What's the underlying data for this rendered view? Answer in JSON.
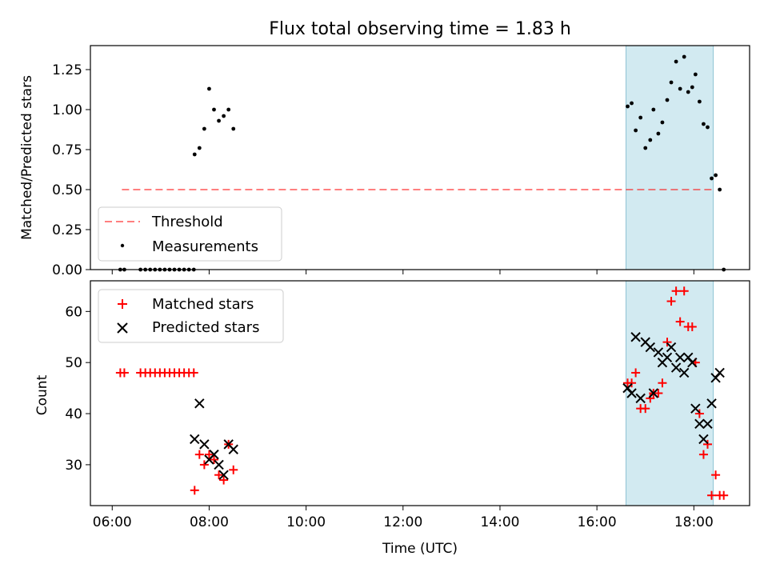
{
  "chart_data": [
    {
      "type": "scatter",
      "title": "Flux total observing time = 1.83 h",
      "xlabel": "",
      "ylabel": "Matched/Predicted stars",
      "xlim_hours": [
        5.55,
        19.15
      ],
      "ylim": [
        0,
        1.4
      ],
      "yticks": [
        "0.00",
        "0.25",
        "0.50",
        "0.75",
        "1.00",
        "1.25"
      ],
      "shaded_interval_utc": [
        "16:36",
        "18:24"
      ],
      "shade_color": "#add8e6",
      "legend_position": "lower-left",
      "threshold": {
        "name": "Threshold",
        "value": 0.5,
        "x_range_utc": [
          "06:12",
          "18:24"
        ],
        "color": "#ff0000"
      },
      "series": [
        {
          "name": "Measurements",
          "marker": "dot",
          "color": "#000000",
          "points": [
            [
              "06:10",
              0.0
            ],
            [
              "06:15",
              0.0
            ],
            [
              "06:35",
              0.0
            ],
            [
              "06:41",
              0.0
            ],
            [
              "06:47",
              0.0
            ],
            [
              "06:53",
              0.0
            ],
            [
              "06:59",
              0.0
            ],
            [
              "07:05",
              0.0
            ],
            [
              "07:11",
              0.0
            ],
            [
              "07:17",
              0.0
            ],
            [
              "07:23",
              0.0
            ],
            [
              "07:29",
              0.0
            ],
            [
              "07:35",
              0.0
            ],
            [
              "07:41",
              0.0
            ],
            [
              "07:42",
              0.72
            ],
            [
              "07:48",
              0.76
            ],
            [
              "07:54",
              0.88
            ],
            [
              "08:00",
              1.13
            ],
            [
              "08:06",
              1.0
            ],
            [
              "08:12",
              0.93
            ],
            [
              "08:18",
              0.96
            ],
            [
              "08:24",
              1.0
            ],
            [
              "08:30",
              0.88
            ],
            [
              "16:38",
              1.02
            ],
            [
              "16:43",
              1.04
            ],
            [
              "16:48",
              0.87
            ],
            [
              "16:54",
              0.95
            ],
            [
              "17:00",
              0.76
            ],
            [
              "17:06",
              0.81
            ],
            [
              "17:10",
              1.0
            ],
            [
              "17:16",
              0.85
            ],
            [
              "17:21",
              0.92
            ],
            [
              "17:27",
              1.06
            ],
            [
              "17:32",
              1.17
            ],
            [
              "17:38",
              1.3
            ],
            [
              "17:43",
              1.13
            ],
            [
              "17:48",
              1.33
            ],
            [
              "17:53",
              1.11
            ],
            [
              "17:58",
              1.14
            ],
            [
              "18:02",
              1.22
            ],
            [
              "18:07",
              1.05
            ],
            [
              "18:12",
              0.91
            ],
            [
              "18:17",
              0.89
            ],
            [
              "18:22",
              0.57
            ],
            [
              "18:27",
              0.59
            ],
            [
              "18:32",
              0.5
            ],
            [
              "18:37",
              0.0
            ]
          ]
        }
      ]
    },
    {
      "type": "scatter",
      "title": "",
      "xlabel": "Time (UTC)",
      "ylabel": "Count",
      "xlim_hours": [
        5.55,
        19.15
      ],
      "ylim": [
        22,
        66
      ],
      "yticks": [
        "30",
        "40",
        "50",
        "60"
      ],
      "xticks": [
        "06:00",
        "08:00",
        "10:00",
        "12:00",
        "14:00",
        "16:00",
        "18:00"
      ],
      "shaded_interval_utc": [
        "16:36",
        "18:24"
      ],
      "shade_color": "#add8e6",
      "legend_position": "top-left",
      "series": [
        {
          "name": "Matched stars",
          "marker": "plus",
          "color": "#ff0000",
          "points": [
            [
              "06:10",
              48
            ],
            [
              "06:15",
              48
            ],
            [
              "06:35",
              48
            ],
            [
              "06:41",
              48
            ],
            [
              "06:47",
              48
            ],
            [
              "06:53",
              48
            ],
            [
              "06:59",
              48
            ],
            [
              "07:05",
              48
            ],
            [
              "07:11",
              48
            ],
            [
              "07:17",
              48
            ],
            [
              "07:23",
              48
            ],
            [
              "07:29",
              48
            ],
            [
              "07:35",
              48
            ],
            [
              "07:41",
              48
            ],
            [
              "07:42",
              25
            ],
            [
              "07:48",
              32
            ],
            [
              "07:54",
              30
            ],
            [
              "08:00",
              32
            ],
            [
              "08:06",
              31
            ],
            [
              "08:12",
              28
            ],
            [
              "08:18",
              27
            ],
            [
              "08:24",
              34
            ],
            [
              "08:30",
              29
            ],
            [
              "16:38",
              46
            ],
            [
              "16:43",
              46
            ],
            [
              "16:48",
              48
            ],
            [
              "16:54",
              41
            ],
            [
              "17:00",
              41
            ],
            [
              "17:06",
              43
            ],
            [
              "17:10",
              44
            ],
            [
              "17:16",
              44
            ],
            [
              "17:21",
              46
            ],
            [
              "17:27",
              54
            ],
            [
              "17:32",
              62
            ],
            [
              "17:38",
              64
            ],
            [
              "17:43",
              58
            ],
            [
              "17:48",
              64
            ],
            [
              "17:53",
              57
            ],
            [
              "17:58",
              57
            ],
            [
              "18:02",
              50
            ],
            [
              "18:07",
              40
            ],
            [
              "18:12",
              32
            ],
            [
              "18:17",
              34
            ],
            [
              "18:22",
              24
            ],
            [
              "18:27",
              28
            ],
            [
              "18:32",
              24
            ],
            [
              "18:37",
              24
            ]
          ]
        },
        {
          "name": "Predicted stars",
          "marker": "x",
          "color": "#000000",
          "points": [
            [
              "07:42",
              35
            ],
            [
              "07:48",
              42
            ],
            [
              "07:54",
              34
            ],
            [
              "08:00",
              31
            ],
            [
              "08:06",
              32
            ],
            [
              "08:12",
              30
            ],
            [
              "08:18",
              28
            ],
            [
              "08:24",
              34
            ],
            [
              "08:30",
              33
            ],
            [
              "16:38",
              45
            ],
            [
              "16:43",
              44
            ],
            [
              "16:48",
              55
            ],
            [
              "16:54",
              43
            ],
            [
              "17:00",
              54
            ],
            [
              "17:06",
              53
            ],
            [
              "17:10",
              44
            ],
            [
              "17:16",
              52
            ],
            [
              "17:21",
              50
            ],
            [
              "17:27",
              51
            ],
            [
              "17:32",
              53
            ],
            [
              "17:38",
              49
            ],
            [
              "17:43",
              51
            ],
            [
              "17:48",
              48
            ],
            [
              "17:53",
              51
            ],
            [
              "17:58",
              50
            ],
            [
              "18:02",
              41
            ],
            [
              "18:07",
              38
            ],
            [
              "18:12",
              35
            ],
            [
              "18:17",
              38
            ],
            [
              "18:22",
              42
            ],
            [
              "18:27",
              47
            ],
            [
              "18:32",
              48
            ]
          ]
        }
      ]
    }
  ]
}
